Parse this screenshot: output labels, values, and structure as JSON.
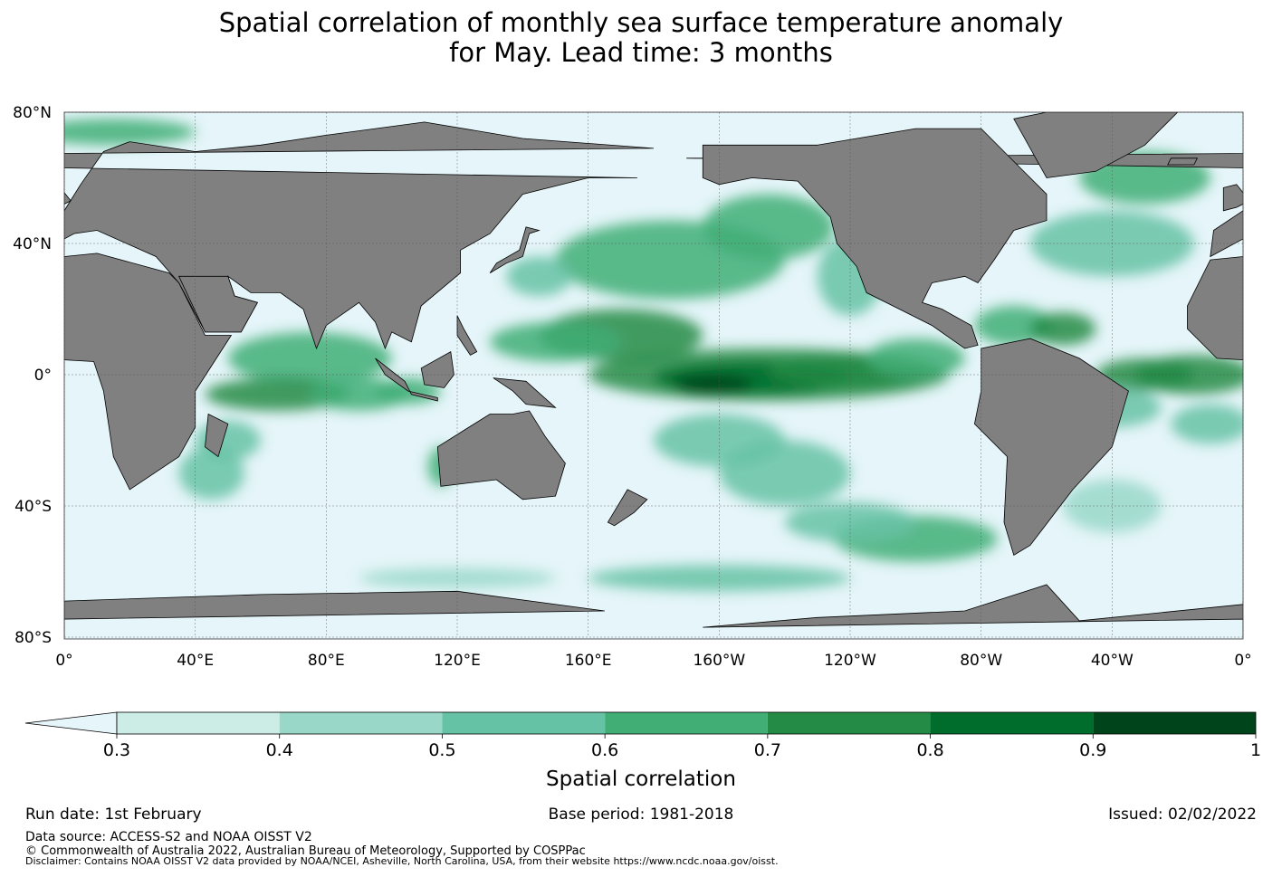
{
  "title": {
    "line1": "Spatial correlation of monthly sea surface temperature anomaly",
    "line2": "for May. Lead time: 3 months"
  },
  "map": {
    "lat_ticks": [
      "80°N",
      "40°N",
      "0°",
      "40°S",
      "80°S"
    ],
    "lon_ticks": [
      "0°",
      "40°E",
      "80°E",
      "120°E",
      "160°E",
      "160°W",
      "120°W",
      "80°W",
      "40°W",
      "0°"
    ],
    "colors": {
      "ocean_low": "#e5f5f9",
      "land": "#808080",
      "coast": "#000000",
      "grid": "#555555"
    }
  },
  "colorbar": {
    "label": "Spatial correlation",
    "ticks": [
      "0.3",
      "0.4",
      "0.5",
      "0.6",
      "0.7",
      "0.8",
      "0.9",
      "1"
    ],
    "colors": [
      "#ccece6",
      "#99d8c9",
      "#66c2a4",
      "#41ae76",
      "#238b45",
      "#006d2c",
      "#00441b"
    ],
    "under_color": "#e5f5f9"
  },
  "footer": {
    "run_date": "Run date: 1st February",
    "base_period": "Base period: 1981-2018",
    "issued": "Issued: 02/02/2022",
    "data_source": "Data source: ACCESS-S2 and NOAA OISST V2",
    "copyright": "© Commonwealth of Australia 2022, Australian Bureau of Meteorology, Supported by COSPPac",
    "disclaimer": "Disclaimer: Contains NOAA OISST V2 data provided by NOAA/NCEI, Asheville, North Carolina, USA, from their website https://www.ncdc.noaa.gov/oisst."
  }
}
